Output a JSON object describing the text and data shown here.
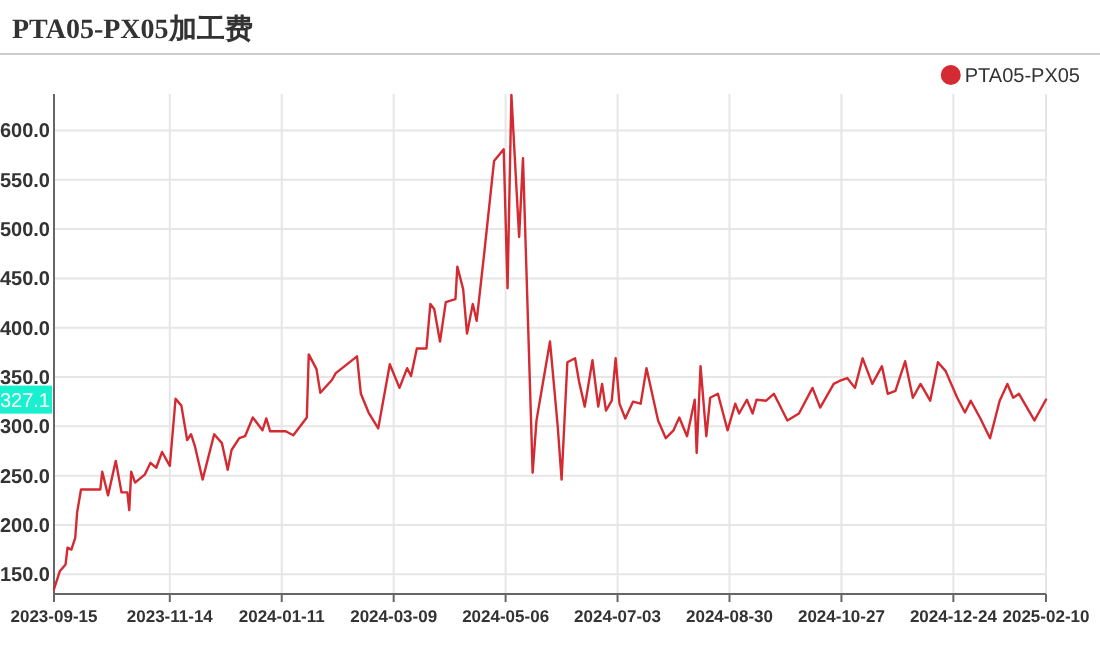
{
  "chart_data": {
    "type": "line",
    "title": "PTA05-PX05加工费",
    "x": [
      "2023-09-15",
      "2023-09-18",
      "2023-09-21",
      "2023-09-22",
      "2023-09-24",
      "2023-09-26",
      "2023-09-27",
      "2023-09-29",
      "2023-10-09",
      "2023-10-10",
      "2023-10-13",
      "2023-10-17",
      "2023-10-20",
      "2023-10-23",
      "2023-10-24",
      "2023-10-25",
      "2023-10-27",
      "2023-11-01",
      "2023-11-04",
      "2023-11-07",
      "2023-11-10",
      "2023-11-14",
      "2023-11-17",
      "2023-11-20",
      "2023-11-23",
      "2023-11-25",
      "2023-11-27",
      "2023-12-01",
      "2023-12-07",
      "2023-12-11",
      "2023-12-14",
      "2023-12-16",
      "2023-12-20",
      "2023-12-23",
      "2023-12-27",
      "2024-01-01",
      "2024-01-03",
      "2024-01-05",
      "2024-01-13",
      "2024-01-17",
      "2024-01-24",
      "2024-01-25",
      "2024-01-29",
      "2024-01-31",
      "2024-02-06",
      "2024-02-08",
      "2024-02-19",
      "2024-02-21",
      "2024-02-25",
      "2024-03-01",
      "2024-03-07",
      "2024-03-12",
      "2024-03-16",
      "2024-03-18",
      "2024-03-21",
      "2024-03-26",
      "2024-03-28",
      "2024-03-30",
      "2024-04-02",
      "2024-04-05",
      "2024-04-10",
      "2024-04-11",
      "2024-04-14",
      "2024-04-16",
      "2024-04-19",
      "2024-04-21",
      "2024-04-25",
      "2024-04-30",
      "2024-05-05",
      "2024-05-07",
      "2024-05-09",
      "2024-05-13",
      "2024-05-15",
      "2024-05-20",
      "2024-05-22",
      "2024-05-24",
      "2024-05-29",
      "2024-06-02",
      "2024-06-04",
      "2024-06-07",
      "2024-06-11",
      "2024-06-13",
      "2024-06-16",
      "2024-06-20",
      "2024-06-23",
      "2024-06-25",
      "2024-06-27",
      "2024-06-30",
      "2024-07-02",
      "2024-07-04",
      "2024-07-07",
      "2024-07-11",
      "2024-07-15",
      "2024-07-18",
      "2024-07-24",
      "2024-07-28",
      "2024-08-01",
      "2024-08-04",
      "2024-08-08",
      "2024-08-12",
      "2024-08-13",
      "2024-08-15",
      "2024-08-18",
      "2024-08-20",
      "2024-08-24",
      "2024-08-29",
      "2024-09-02",
      "2024-09-04",
      "2024-09-08",
      "2024-09-11",
      "2024-09-13",
      "2024-09-18",
      "2024-09-22",
      "2024-09-29",
      "2024-10-05",
      "2024-10-12",
      "2024-10-16",
      "2024-10-23",
      "2024-10-26",
      "2024-10-30",
      "2024-11-03",
      "2024-11-07",
      "2024-11-12",
      "2024-11-17",
      "2024-11-20",
      "2024-11-24",
      "2024-11-29",
      "2024-12-03",
      "2024-12-07",
      "2024-12-12",
      "2024-12-16",
      "2024-12-20",
      "2024-12-26",
      "2024-12-30",
      "2025-01-02",
      "2025-01-07",
      "2025-01-12",
      "2025-01-17",
      "2025-01-21",
      "2025-01-24",
      "2025-01-27",
      "2025-02-04",
      "2025-02-06",
      "2025-02-10"
    ],
    "series": [
      {
        "name": "PTA05-PX05",
        "color": "#d42a32",
        "values": [
          135,
          153,
          160,
          177,
          175,
          187,
          213,
          236,
          236,
          254,
          230,
          265,
          233,
          233,
          215,
          254,
          243,
          251,
          263,
          258,
          274,
          260,
          328,
          321,
          286,
          292,
          280,
          246,
          292,
          283,
          256,
          276,
          288,
          290,
          309,
          296,
          308,
          295,
          295,
          291,
          309,
          373,
          358,
          334,
          347,
          354,
          371,
          333,
          314,
          298,
          363,
          339,
          359,
          351,
          379,
          379,
          424,
          419,
          386,
          426,
          429,
          462,
          439,
          394,
          424,
          407,
          477,
          569,
          581,
          440,
          636,
          492,
          572,
          253,
          306,
          329,
          386,
          300,
          246,
          365,
          369,
          346,
          320,
          367,
          320,
          343,
          316,
          326,
          369,
          323,
          308,
          325,
          323,
          359,
          306,
          288,
          296,
          309,
          290,
          327,
          273,
          361,
          290,
          329,
          333,
          296,
          323,
          313,
          327,
          313,
          327,
          326,
          333,
          306,
          313,
          339,
          319,
          343,
          346,
          349,
          339,
          369,
          343,
          361,
          333,
          336,
          366,
          329,
          343,
          326,
          365,
          356,
          329,
          314,
          326,
          308,
          288,
          326,
          343,
          329,
          333,
          306,
          313,
          327.1
        ]
      }
    ],
    "xlim": [
      "2023-09-15",
      "2025-02-10"
    ],
    "xticks": [
      "2023-09-15",
      "2023-11-14",
      "2024-01-11",
      "2024-03-09",
      "2024-05-06",
      "2024-07-03",
      "2024-08-30",
      "2024-10-27",
      "2024-12-24",
      "2025-02-10"
    ],
    "ylim": [
      130,
      637
    ],
    "yticks": [
      {
        "value": 150,
        "label": "150.0"
      },
      {
        "value": 200,
        "label": "200.0"
      },
      {
        "value": 250,
        "label": "250.0"
      },
      {
        "value": 300,
        "label": "300.0"
      },
      {
        "value": 350,
        "label": "350.0"
      },
      {
        "value": 400,
        "label": "400.0"
      },
      {
        "value": 450,
        "label": "450.0"
      },
      {
        "value": 500,
        "label": "500.0"
      },
      {
        "value": 550,
        "label": "550.0"
      },
      {
        "value": 600,
        "label": "600.0"
      }
    ],
    "grid": true,
    "legend": "top right",
    "marker": "none",
    "annotations": [
      "327.1"
    ]
  }
}
